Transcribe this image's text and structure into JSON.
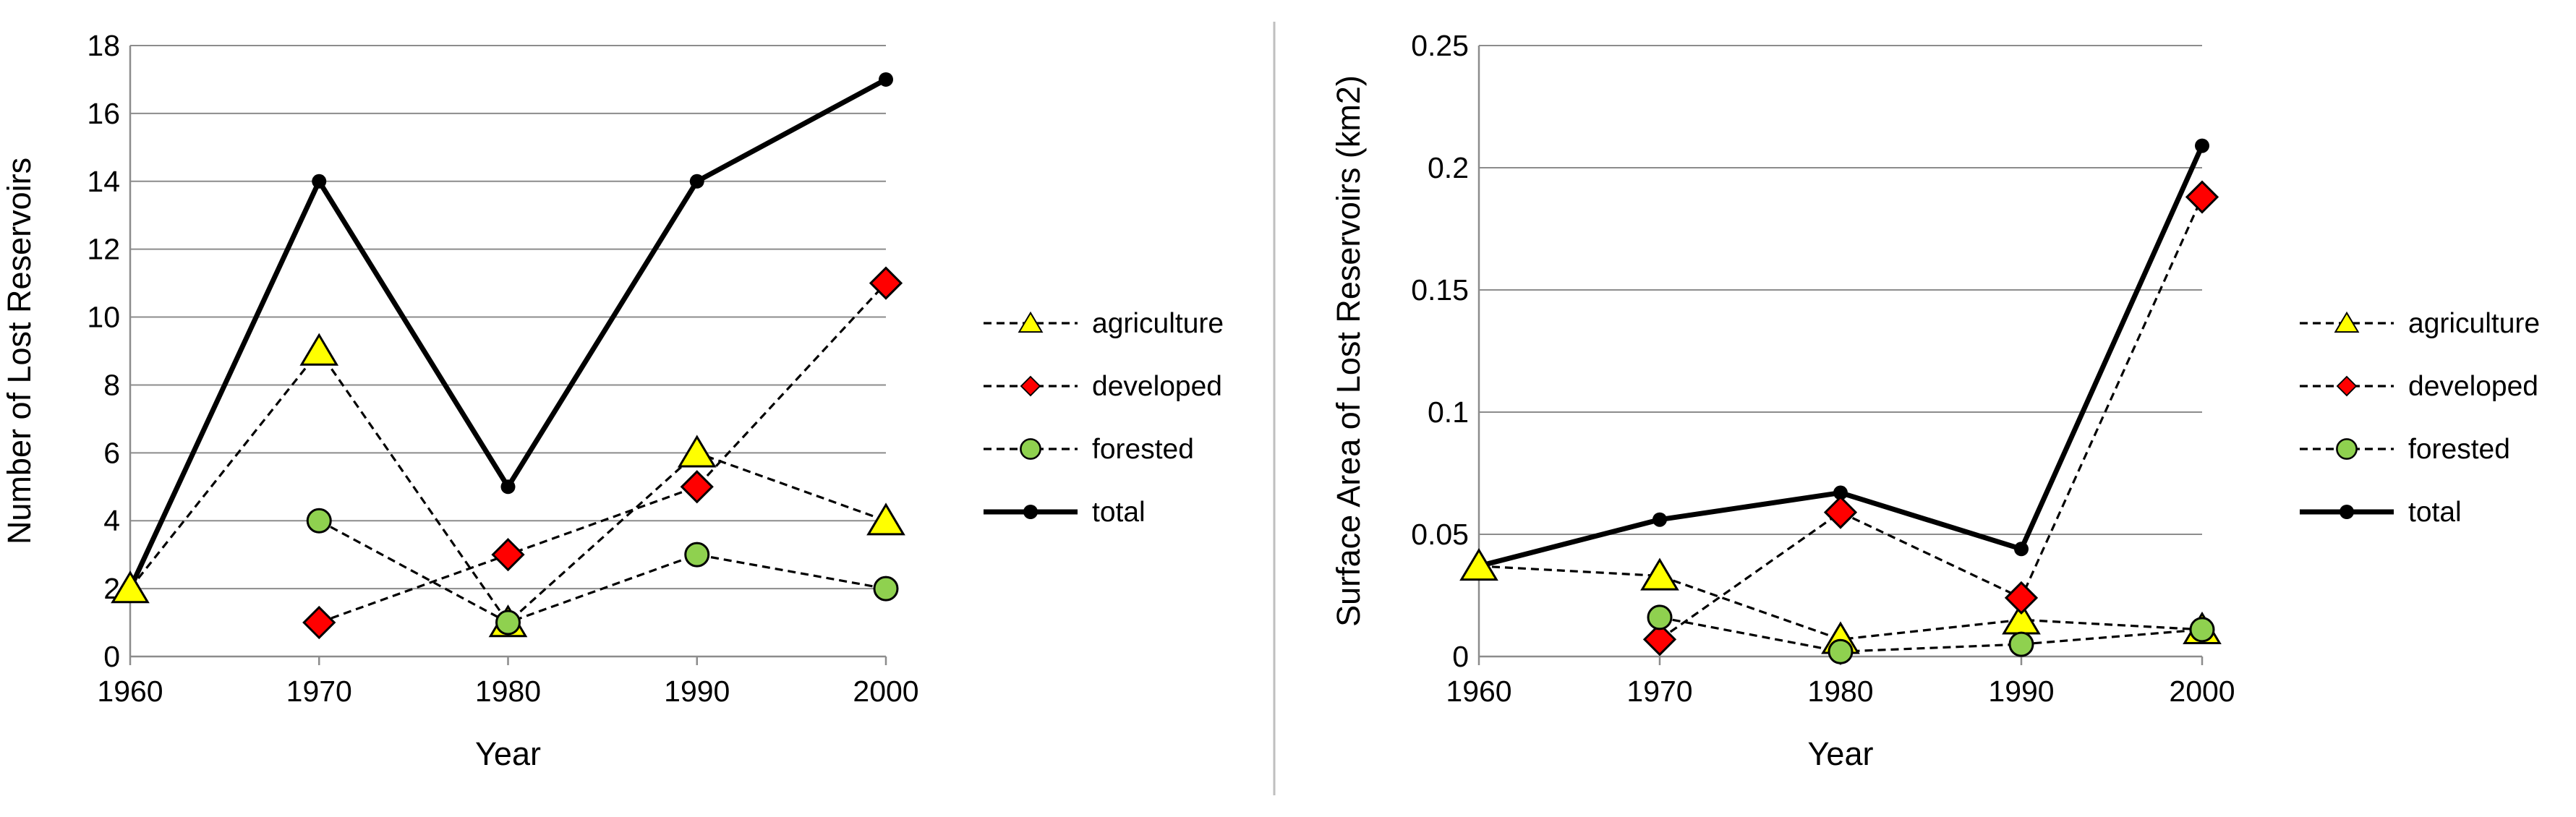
{
  "chart_data": [
    {
      "type": "line",
      "title": "",
      "xlabel": "Year",
      "ylabel": "Number of Lost Reservoirs",
      "x": [
        1960,
        1970,
        1980,
        1990,
        2000
      ],
      "xlim": [
        1960,
        2000
      ],
      "ylim": [
        0,
        18
      ],
      "yticks": [
        0,
        2,
        4,
        6,
        8,
        10,
        12,
        14,
        16,
        18
      ],
      "ytick_labels": [
        "0",
        "2",
        "4",
        "6",
        "8",
        "10",
        "12",
        "14",
        "16",
        "18"
      ],
      "xtick_labels": [
        "1960",
        "1970",
        "1980",
        "1990",
        "2000"
      ],
      "grid": "horizontal",
      "legend_position": "right",
      "series": [
        {
          "name": "agriculture",
          "values": [
            2,
            9,
            1,
            6,
            4
          ]
        },
        {
          "name": "developed",
          "values": [
            null,
            1,
            3,
            5,
            11
          ]
        },
        {
          "name": "forested",
          "values": [
            null,
            4,
            1,
            3,
            2
          ]
        },
        {
          "name": "total",
          "values": [
            2,
            14,
            5,
            14,
            17
          ]
        }
      ]
    },
    {
      "type": "line",
      "title": "",
      "xlabel": "Year",
      "ylabel": "Surface Area of Lost Reservoirs  (km2)",
      "x": [
        1960,
        1970,
        1980,
        1990,
        2000
      ],
      "xlim": [
        1960,
        2000
      ],
      "ylim": [
        0,
        0.25
      ],
      "yticks": [
        0,
        0.05,
        0.1,
        0.15,
        0.2,
        0.25
      ],
      "ytick_labels": [
        "0",
        "0.05",
        "0.1",
        "0.15",
        "0.2",
        "0.25"
      ],
      "xtick_labels": [
        "1960",
        "1970",
        "1980",
        "1990",
        "2000"
      ],
      "grid": "horizontal",
      "legend_position": "right",
      "series": [
        {
          "name": "agriculture",
          "values": [
            0.037,
            0.033,
            0.007,
            0.015,
            0.011
          ]
        },
        {
          "name": "developed",
          "values": [
            null,
            0.007,
            0.059,
            0.024,
            0.188
          ]
        },
        {
          "name": "forested",
          "values": [
            null,
            0.016,
            0.002,
            0.005,
            0.011
          ]
        },
        {
          "name": "total",
          "values": [
            0.037,
            0.056,
            0.067,
            0.044,
            0.209
          ]
        }
      ]
    }
  ],
  "legend": [
    {
      "key": "agriculture",
      "label": "agriculture"
    },
    {
      "key": "developed",
      "label": "developed"
    },
    {
      "key": "forested",
      "label": "forested"
    },
    {
      "key": "total",
      "label": "total"
    }
  ],
  "colors": {
    "agriculture": "#ffff00",
    "developed": "#ff0000",
    "forested": "#8fd14f",
    "total": "#000000",
    "grid": "#8c8c8c",
    "axis": "#8c8c8c",
    "divider": "#bfbfbf"
  }
}
